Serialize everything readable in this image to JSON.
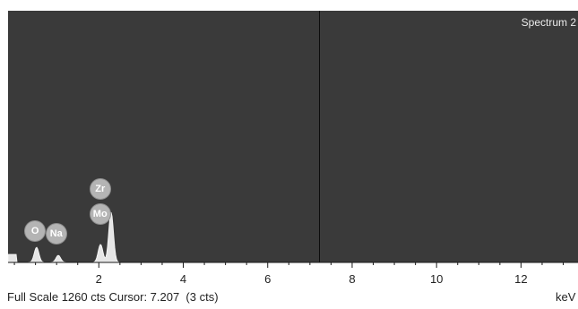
{
  "spectrum": {
    "title": "Spectrum 2",
    "x_range_kev": [
      -0.15,
      13.35
    ],
    "full_scale_counts": 1260,
    "cursor_kev": 7.207,
    "peaks": [
      {
        "element": "O",
        "kev": 0.525,
        "counts": 75
      },
      {
        "element": "Na",
        "kev": 1.04,
        "counts": 35
      },
      {
        "element": "Mo",
        "kev": 2.29,
        "counts": 250
      },
      {
        "element": "Zr",
        "kev": 2.04,
        "counts": 90
      }
    ],
    "labels": [
      {
        "text": "O",
        "kev": 0.3
      },
      {
        "text": "Na",
        "kev": 0.8
      },
      {
        "text": "Mo",
        "kev": 1.84
      },
      {
        "text": "Zr",
        "kev": 1.84
      }
    ]
  },
  "axis": {
    "ticks_major": [
      2,
      4,
      6,
      8,
      10,
      12
    ],
    "tick_labels": [
      "2",
      "4",
      "6",
      "8",
      "10",
      "12"
    ],
    "units": "keV"
  },
  "status": {
    "text": "Full Scale 1260 cts Cursor: 7.207  (3 cts)"
  },
  "colors": {
    "plot_background": "#3a3a3a",
    "spectrum_fill": "#e6e6e6",
    "label_fill": "#b4b4b4"
  }
}
